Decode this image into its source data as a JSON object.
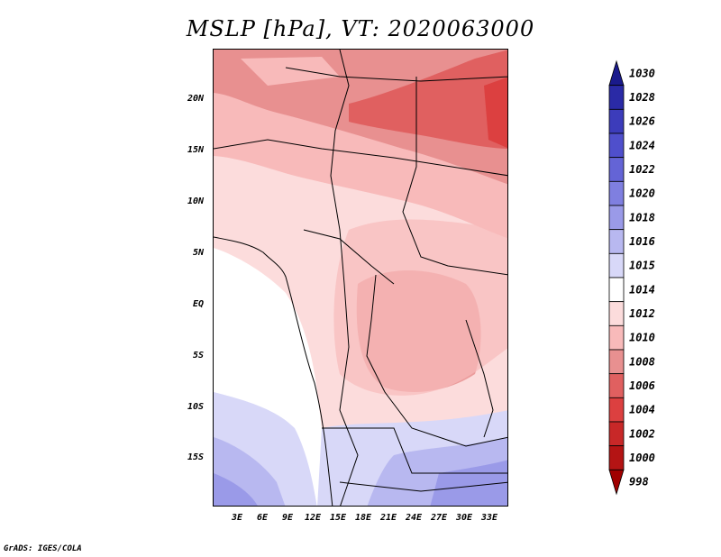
{
  "title": "MSLP [hPa], VT: 2020063000",
  "lat_ticks": [
    "20N",
    "15N",
    "10N",
    "5N",
    "EQ",
    "5S",
    "10S",
    "15S"
  ],
  "lon_ticks": [
    "3E",
    "6E",
    "9E",
    "12E",
    "15E",
    "18E",
    "21E",
    "24E",
    "27E",
    "30E",
    "33E"
  ],
  "colorbar": {
    "labels": [
      "1030",
      "1028",
      "1026",
      "1024",
      "1022",
      "1020",
      "1018",
      "1016",
      "1015",
      "1014",
      "1012",
      "1010",
      "1008",
      "1006",
      "1004",
      "1002",
      "1000",
      "998"
    ],
    "colors": [
      "#1a1a8c",
      "#2a2aa6",
      "#3c3cbb",
      "#4f4fcc",
      "#6464d6",
      "#7f7fe0",
      "#9a9ae8",
      "#b8b8f0",
      "#d8d8f8",
      "#ffffff",
      "#fcdcdc",
      "#f8baba",
      "#e89090",
      "#e06060",
      "#dc4040",
      "#c82828",
      "#b41414",
      "#a00000"
    ]
  },
  "credit": "GrADS: IGES/COLA"
}
